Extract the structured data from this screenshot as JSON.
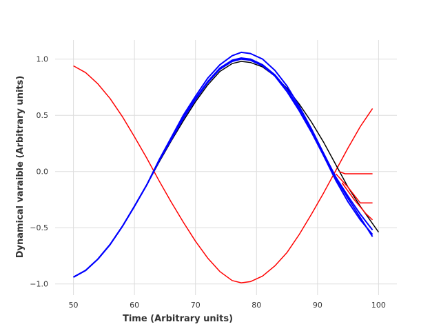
{
  "chart_data": {
    "type": "line",
    "title": "",
    "xlabel": "Time (Arbitrary units)",
    "ylabel": "Dynamical varaible (Arbitrary units)",
    "xlim": [
      47,
      103
    ],
    "ylim": [
      -1.1,
      1.17
    ],
    "xticks": [
      50,
      60,
      70,
      80,
      90,
      100
    ],
    "xtick_labels": [
      "50",
      "60",
      "70",
      "80",
      "90",
      "100"
    ],
    "yticks": [
      -1.0,
      -0.5,
      0.0,
      0.5,
      1.0
    ],
    "ytick_labels": [
      "−1.0",
      "−0.5",
      "0.0",
      "0.5",
      "1.0"
    ],
    "grid": true,
    "colors": {
      "truth": "#000000",
      "forecast": "#0000ff",
      "red": "#ff0000"
    },
    "series": [
      {
        "color": "#ff0000",
        "x": [
          50,
          52,
          54,
          56,
          58,
          60,
          62,
          64,
          66,
          68,
          70,
          72,
          74,
          76,
          77.5,
          79,
          81,
          83,
          85,
          87,
          89,
          91,
          93,
          95,
          97,
          99
        ],
        "y": [
          0.94,
          0.88,
          0.78,
          0.65,
          0.49,
          0.31,
          0.12,
          -0.08,
          -0.27,
          -0.45,
          -0.62,
          -0.77,
          -0.89,
          -0.97,
          -0.99,
          -0.98,
          -0.93,
          -0.84,
          -0.72,
          -0.56,
          -0.38,
          -0.19,
          0.01,
          0.21,
          0.4,
          0.56
        ]
      },
      {
        "color": "#000000",
        "x": [
          50,
          52,
          54,
          56,
          58,
          60,
          62,
          64,
          66,
          68,
          70,
          72,
          74,
          76,
          77.5,
          79,
          81,
          83,
          85,
          87,
          89,
          91,
          93,
          95,
          97,
          100
        ],
        "y": [
          -0.94,
          -0.88,
          -0.78,
          -0.65,
          -0.49,
          -0.31,
          -0.12,
          0.08,
          0.27,
          0.45,
          0.62,
          0.77,
          0.89,
          0.96,
          0.98,
          0.97,
          0.93,
          0.85,
          0.74,
          0.6,
          0.44,
          0.26,
          0.06,
          -0.14,
          -0.31,
          -0.54
        ]
      },
      {
        "color": "#0000ff",
        "x": [
          50,
          52,
          54,
          56,
          58,
          60,
          62,
          64,
          66,
          68,
          70,
          72,
          74,
          76,
          77.5,
          79,
          81,
          83,
          85,
          87,
          89,
          91,
          93,
          95,
          97,
          99
        ],
        "y": [
          -0.94,
          -0.88,
          -0.78,
          -0.65,
          -0.49,
          -0.31,
          -0.12,
          0.09,
          0.29,
          0.48,
          0.65,
          0.8,
          0.92,
          0.99,
          1.01,
          1.0,
          0.95,
          0.86,
          0.73,
          0.56,
          0.37,
          0.16,
          -0.06,
          -0.24,
          -0.41,
          -0.58
        ]
      },
      {
        "color": "#0000ff",
        "x": [
          50,
          52,
          54,
          56,
          58,
          60,
          62,
          64,
          66,
          68,
          70,
          72,
          74,
          76,
          77.5,
          79,
          81,
          83,
          85,
          87,
          89,
          91,
          93,
          95,
          97,
          99
        ],
        "y": [
          -0.94,
          -0.88,
          -0.78,
          -0.65,
          -0.49,
          -0.31,
          -0.12,
          0.1,
          0.3,
          0.5,
          0.67,
          0.83,
          0.95,
          1.03,
          1.06,
          1.05,
          1.0,
          0.9,
          0.76,
          0.58,
          0.38,
          0.16,
          -0.05,
          -0.22,
          -0.38,
          -0.52
        ]
      },
      {
        "color": "#0000ff",
        "x": [
          50,
          52,
          54,
          56,
          58,
          60,
          62,
          64,
          66,
          68,
          70,
          72,
          74,
          76,
          77.5,
          79,
          81,
          83,
          85,
          87,
          89,
          91,
          93,
          95,
          97,
          99
        ],
        "y": [
          -0.94,
          -0.88,
          -0.78,
          -0.65,
          -0.49,
          -0.31,
          -0.12,
          0.09,
          0.28,
          0.47,
          0.64,
          0.79,
          0.91,
          0.98,
          1.0,
          0.99,
          0.94,
          0.85,
          0.71,
          0.54,
          0.35,
          0.14,
          -0.08,
          -0.27,
          -0.43,
          -0.56
        ]
      },
      {
        "color": "#ff0000",
        "x": [
          93.5,
          94.5,
          96,
          98,
          99
        ],
        "y": [
          0.0,
          -0.02,
          -0.02,
          -0.02,
          -0.02
        ]
      },
      {
        "color": "#ff0000",
        "x": [
          93,
          95,
          97,
          99
        ],
        "y": [
          -0.02,
          -0.14,
          -0.28,
          -0.28
        ]
      },
      {
        "color": "#ff0000",
        "x": [
          94,
          96,
          98,
          99
        ],
        "y": [
          -0.1,
          -0.25,
          -0.38,
          -0.43
        ]
      }
    ]
  }
}
